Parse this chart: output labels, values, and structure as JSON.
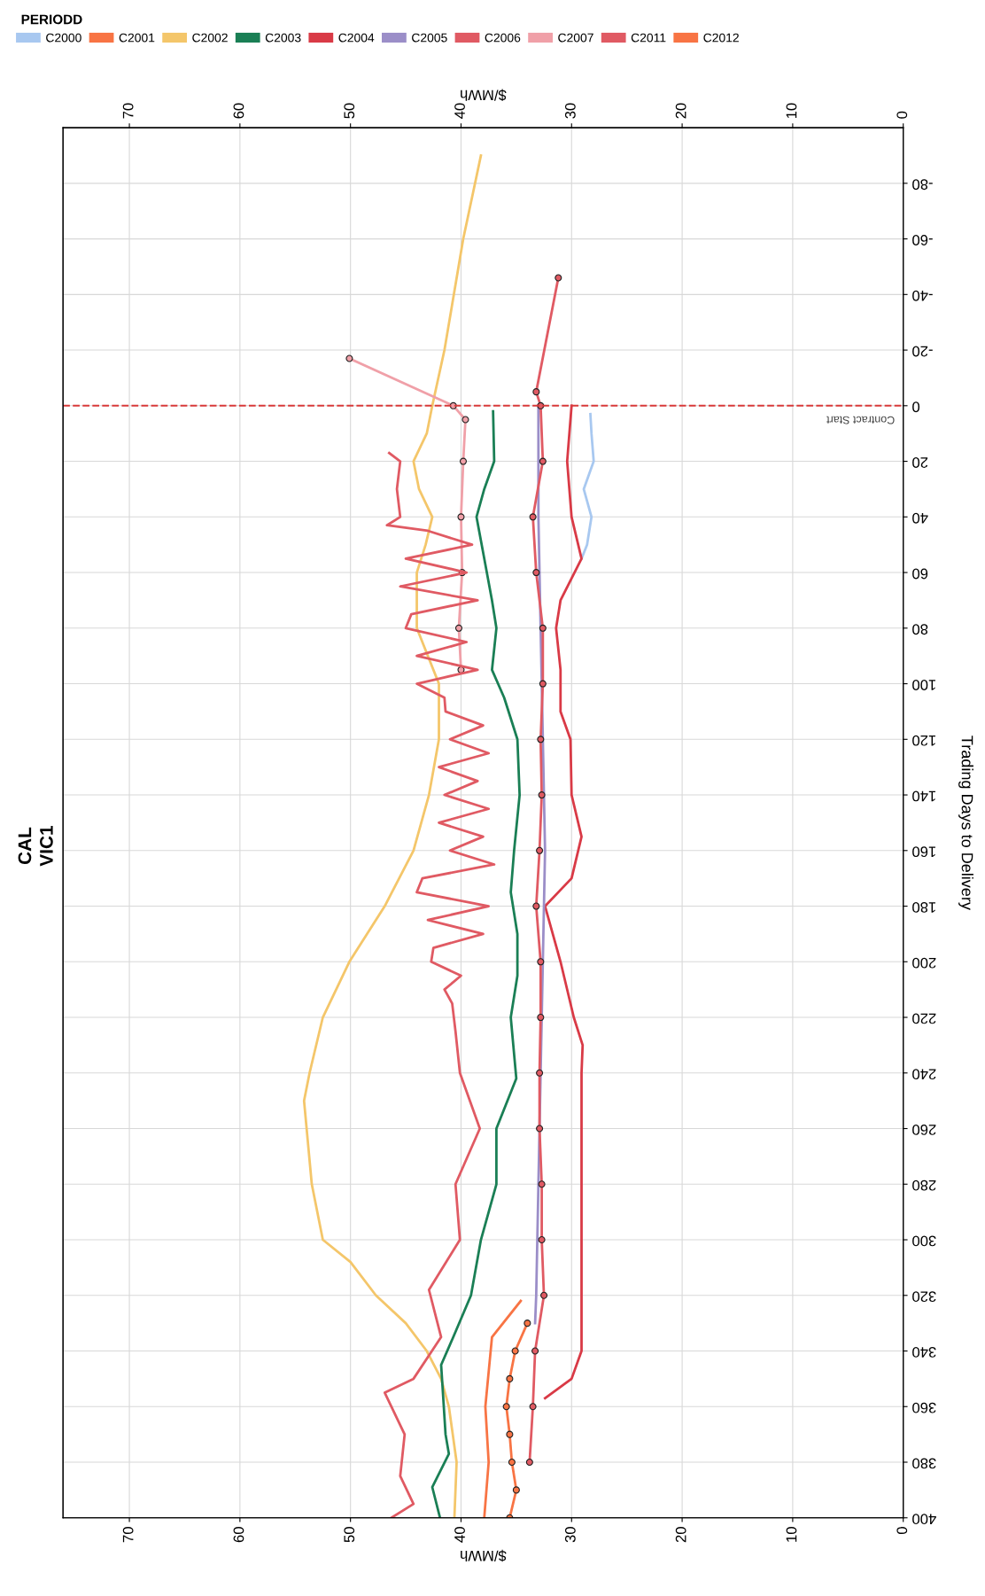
{
  "chart_data": {
    "type": "line",
    "title": "CAL",
    "subtitle": "VIC1",
    "xlabel": "$/MWh",
    "x2label": "$/MWh",
    "ylabel": "Trading Days to Delivery",
    "legend_title": "PERIODD",
    "xlim": [
      76,
      0
    ],
    "xticks": [
      70,
      60,
      50,
      40,
      30,
      20,
      10,
      0
    ],
    "x2lim": [
      76,
      0
    ],
    "x2ticks": [
      70,
      60,
      50,
      40,
      30,
      20,
      10,
      0
    ],
    "ylim": [
      400,
      -100
    ],
    "yticks": [
      400,
      380,
      360,
      340,
      320,
      300,
      280,
      260,
      240,
      220,
      200,
      180,
      160,
      140,
      120,
      100,
      80,
      60,
      40,
      20,
      0,
      -20,
      -40,
      -60,
      -80
    ],
    "grid": true,
    "legend": "top left",
    "ref_lines": [
      {
        "axis": "y",
        "value": 0,
        "label": "Contract Start",
        "color": "#d93a3a",
        "line_style": "dashed"
      }
    ],
    "series": [
      {
        "name": "C2000",
        "color": "#a8c8f0",
        "values": [
          3,
          10,
          20,
          30,
          40,
          50,
          55
        ],
        "x": [
          28.3,
          28.2,
          28.0,
          28.9,
          28.2,
          28.6,
          29.1
        ]
      },
      {
        "name": "C2001",
        "color": "#f87444",
        "marker": "circle",
        "values": [
          330,
          340,
          350,
          360,
          370,
          380,
          390,
          400
        ],
        "x": [
          34.0,
          35.1,
          35.6,
          35.9,
          35.6,
          35.4,
          35.0,
          35.6
        ]
      },
      {
        "name": "C2002",
        "color": "#f4c66a",
        "values": [
          -90,
          -60,
          -20,
          0,
          10,
          20,
          30,
          40,
          50,
          60,
          80,
          100,
          120,
          140,
          160,
          180,
          200,
          220,
          240,
          250,
          280,
          300,
          308,
          320,
          330,
          340,
          350,
          360,
          380,
          400
        ],
        "x": [
          38.2,
          39.8,
          41.5,
          42.6,
          43.1,
          44.3,
          43.8,
          42.6,
          43.2,
          44.0,
          44.0,
          42.0,
          42.0,
          42.9,
          44.3,
          46.9,
          50.1,
          52.5,
          53.7,
          54.2,
          53.5,
          52.5,
          50.0,
          47.7,
          45.0,
          43.1,
          41.8,
          41.1,
          40.4,
          40.6
        ]
      },
      {
        "name": "C2003",
        "color": "#1a7f55",
        "values": [
          2,
          20,
          30,
          40,
          55,
          70,
          80,
          95,
          105,
          120,
          140,
          160,
          175,
          190,
          205,
          220,
          242,
          260,
          280,
          300,
          320,
          335,
          345,
          370,
          377,
          389,
          400
        ],
        "x": [
          37.1,
          37.0,
          37.9,
          38.6,
          37.9,
          37.2,
          36.8,
          37.2,
          36.1,
          34.9,
          34.7,
          35.2,
          35.5,
          34.9,
          34.9,
          35.5,
          35.0,
          36.8,
          36.8,
          38.2,
          39.1,
          40.7,
          41.8,
          41.4,
          41.1,
          42.6,
          41.9
        ]
      },
      {
        "name": "C2004",
        "color": "#d93a46",
        "values": [
          0,
          20,
          40,
          55,
          70,
          80,
          95,
          110,
          120,
          140,
          155,
          170,
          180,
          200,
          220,
          230,
          240,
          300,
          340,
          350,
          357
        ],
        "x": [
          30.0,
          30.4,
          30.0,
          29.1,
          31.0,
          31.4,
          31.0,
          31.0,
          30.1,
          30.0,
          29.1,
          30.0,
          32.4,
          31.0,
          29.8,
          29.0,
          29.1,
          29.1,
          29.1,
          30.0,
          32.4
        ]
      },
      {
        "name": "C2005",
        "color": "#9b8ec8",
        "values": [
          0,
          40,
          80,
          120,
          160,
          200,
          240,
          280,
          320,
          330
        ],
        "x": [
          33.0,
          33.0,
          32.8,
          32.6,
          32.4,
          32.6,
          32.8,
          33.0,
          33.2,
          33.3
        ]
      },
      {
        "name": "C2006",
        "color": "#e05a63",
        "marker": "circle",
        "values": [
          -46,
          -5,
          0,
          20,
          40,
          60,
          80,
          100,
          120,
          140,
          160,
          180,
          200,
          220,
          240,
          260,
          280,
          300,
          320,
          340,
          360,
          380
        ],
        "x": [
          31.2,
          33.2,
          32.8,
          32.6,
          33.5,
          33.2,
          32.6,
          32.6,
          32.8,
          32.7,
          32.9,
          33.2,
          32.8,
          32.8,
          32.9,
          32.9,
          32.7,
          32.7,
          32.5,
          33.3,
          33.5,
          33.8
        ]
      },
      {
        "name": "C2007",
        "color": "#f0a0a8",
        "marker": "circle",
        "values": [
          -17,
          0,
          5,
          20,
          40,
          60,
          80,
          95
        ],
        "x": [
          50.1,
          40.7,
          39.6,
          39.8,
          40.0,
          39.9,
          40.2,
          40.0
        ]
      },
      {
        "name": "C2011",
        "color": "#e05a63",
        "values": [
          17,
          20,
          30,
          40,
          43,
          45,
          50,
          55,
          60,
          65,
          70,
          75,
          80,
          85,
          90,
          95,
          100,
          105,
          110,
          115,
          120,
          125,
          130,
          135,
          140,
          145,
          150,
          155,
          160,
          165,
          170,
          175,
          180,
          185,
          190,
          195,
          200,
          205,
          210,
          215,
          225,
          240,
          260,
          280,
          300,
          318,
          335,
          350,
          355,
          370,
          385,
          395,
          400
        ],
        "x": [
          46.5,
          45.5,
          45.8,
          45.5,
          46.7,
          43.0,
          39.0,
          45.0,
          39.5,
          45.5,
          38.5,
          44.5,
          45.0,
          39.5,
          44.0,
          38.5,
          44.0,
          41.5,
          41.4,
          38.0,
          41.0,
          37.5,
          42.0,
          38.5,
          41.5,
          37.5,
          42.0,
          38.0,
          41.0,
          37.0,
          43.5,
          44.0,
          37.5,
          43.0,
          38.0,
          42.5,
          42.7,
          40.0,
          41.5,
          40.8,
          40.5,
          40.1,
          38.3,
          40.5,
          40.1,
          42.9,
          41.8,
          44.3,
          46.9,
          45.1,
          45.5,
          44.3,
          46.3
        ]
      },
      {
        "name": "C2012",
        "color": "#f87444",
        "values": [
          322,
          335,
          360,
          380,
          400
        ],
        "x": [
          34.6,
          37.2,
          37.8,
          37.5,
          37.9
        ]
      }
    ]
  }
}
